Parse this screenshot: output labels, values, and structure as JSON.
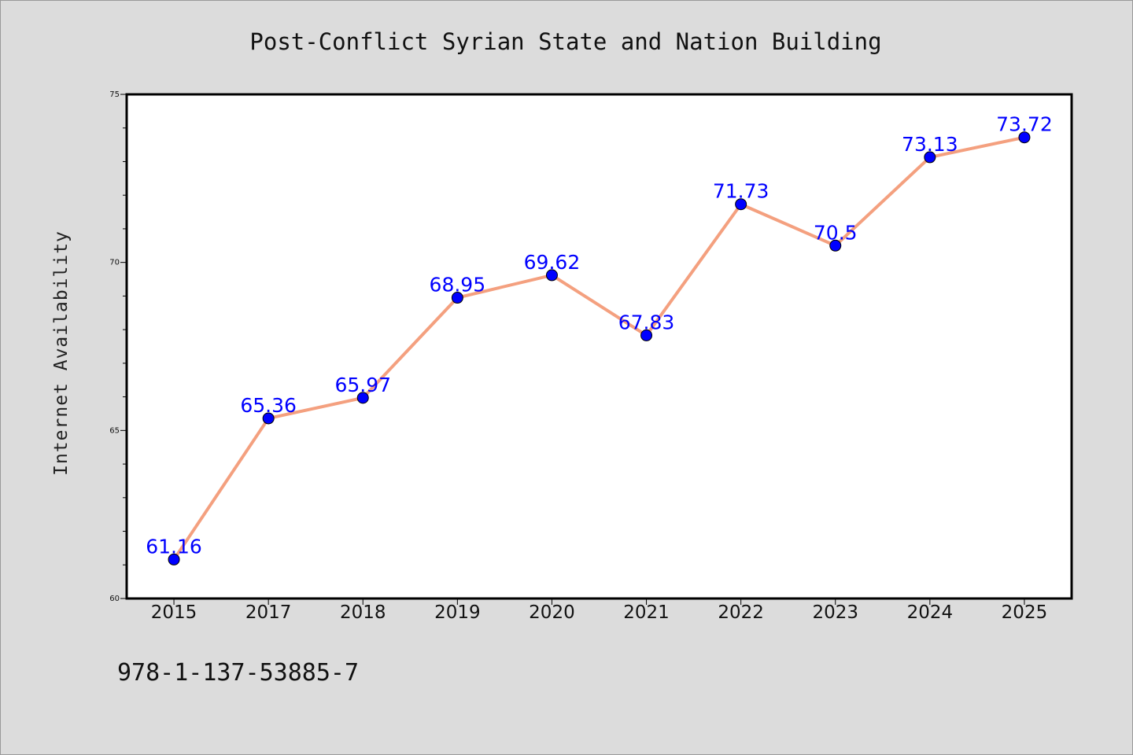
{
  "chart_data": {
    "type": "line",
    "title": "Post-Conflict Syrian State and Nation Building",
    "xlabel": "",
    "ylabel": "Internet Availability",
    "categories": [
      "2015",
      "2017",
      "2018",
      "2019",
      "2020",
      "2021",
      "2022",
      "2023",
      "2024",
      "2025"
    ],
    "series": [
      {
        "values": [
          61.16,
          65.36,
          65.97,
          68.95,
          69.62,
          67.83,
          71.73,
          70.5,
          73.13,
          73.72
        ],
        "labels": [
          "61.16",
          "65.36",
          "65.97",
          "68.95",
          "69.62",
          "67.83",
          "71.73",
          "70.5",
          "73.13",
          "73.72"
        ]
      }
    ],
    "ylim": [
      60,
      75
    ],
    "yticks": [
      "60",
      "65",
      "70",
      "75"
    ],
    "grid": false,
    "legend": "none"
  },
  "footer_text": "978-1-137-53885-7",
  "colors": {
    "background": "#dcdcdc",
    "plot_background": "#ffffff",
    "line": "#f4a07f",
    "marker": "#0000ff",
    "data_label": "#0000ff"
  }
}
